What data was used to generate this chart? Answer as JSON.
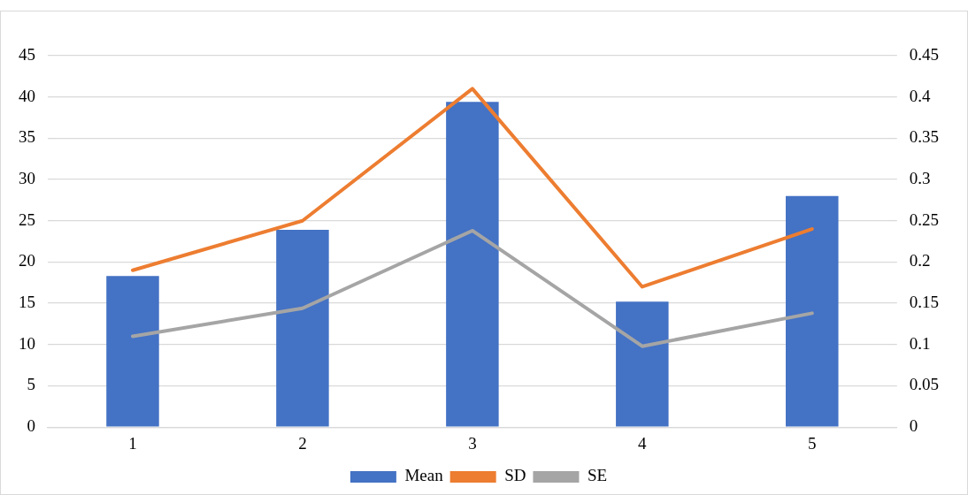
{
  "chart_data": {
    "type": "bar",
    "categories": [
      "1",
      "2",
      "3",
      "4",
      "5"
    ],
    "series": [
      {
        "name": "Mean",
        "color": "#4472c4",
        "values": [
          18.3,
          23.9,
          39.4,
          15.2,
          28.0
        ]
      },
      {
        "name": "SD",
        "type": "line",
        "axis": "y2",
        "color": "#ed7d31",
        "values": [
          0.19,
          0.25,
          0.41,
          0.17,
          0.24
        ]
      },
      {
        "name": "SE",
        "type": "line",
        "axis": "y2",
        "color": "#a5a5a5",
        "values": [
          0.11,
          0.144,
          0.238,
          0.098,
          0.138
        ]
      }
    ],
    "ylim": [
      0,
      45
    ],
    "yticks": [
      0,
      5,
      10,
      15,
      20,
      25,
      30,
      35,
      40,
      45
    ],
    "y2lim": [
      0,
      0.45
    ],
    "y2ticks": [
      0,
      0.05,
      0.1,
      0.15,
      0.2,
      0.25,
      0.3,
      0.35,
      0.4,
      0.45
    ],
    "grid": "y",
    "legend": "bottom",
    "marker": "none"
  }
}
